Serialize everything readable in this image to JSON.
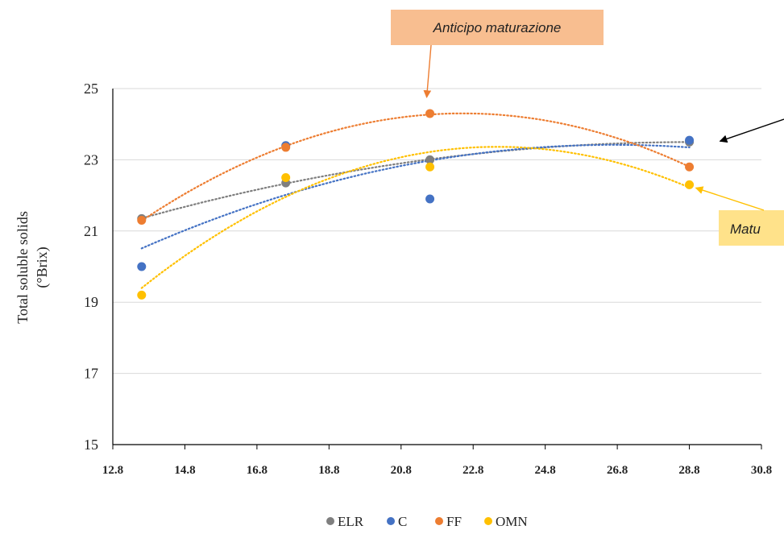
{
  "chart_data": {
    "type": "scatter",
    "ylabel": [
      "Total soluble solids",
      "(°Brix)"
    ],
    "xlabel": "",
    "xlim": [
      12.8,
      30.8
    ],
    "ylim": [
      15,
      25
    ],
    "x_ticks": [
      "12.8",
      "14.8",
      "16.8",
      "18.8",
      "20.8",
      "22.8",
      "24.8",
      "26.8",
      "28.8",
      "30.8"
    ],
    "y_ticks": [
      "15",
      "17",
      "19",
      "21",
      "23",
      "25"
    ],
    "grid": "horizontal",
    "legend_position": "bottom",
    "trendline": "polynomial order 2 (dotted)",
    "series": [
      {
        "name": "ELR",
        "color": "#7f7f7f",
        "x": [
          13.6,
          17.6,
          21.6,
          28.8
        ],
        "y": [
          21.35,
          22.35,
          23.0,
          23.5
        ]
      },
      {
        "name": "C",
        "color": "#4472c4",
        "x": [
          13.6,
          17.6,
          21.6,
          28.8
        ],
        "y": [
          20.0,
          23.4,
          21.9,
          23.55
        ]
      },
      {
        "name": "FF",
        "color": "#ed7d31",
        "x": [
          13.6,
          17.6,
          21.6,
          28.8
        ],
        "y": [
          21.3,
          23.35,
          24.3,
          22.8
        ]
      },
      {
        "name": "OMN",
        "color": "#ffc000",
        "x": [
          13.6,
          17.6,
          21.6,
          28.8
        ],
        "y": [
          19.2,
          22.5,
          22.8,
          22.3
        ]
      }
    ],
    "annotations": [
      {
        "text": "Anticipo maturazione",
        "color": "#ed7d31",
        "box_fill": "#f8be90",
        "target": {
          "x": 21.6,
          "y": 24.3
        }
      },
      {
        "text": "Matu",
        "color": "#ffc000",
        "box_fill": "#ffe28a",
        "target": {
          "x": 28.8,
          "y": 22.3
        }
      },
      {
        "text": "",
        "color": "#000000",
        "target": {
          "x": 28.8,
          "y": 23.5
        }
      }
    ]
  }
}
